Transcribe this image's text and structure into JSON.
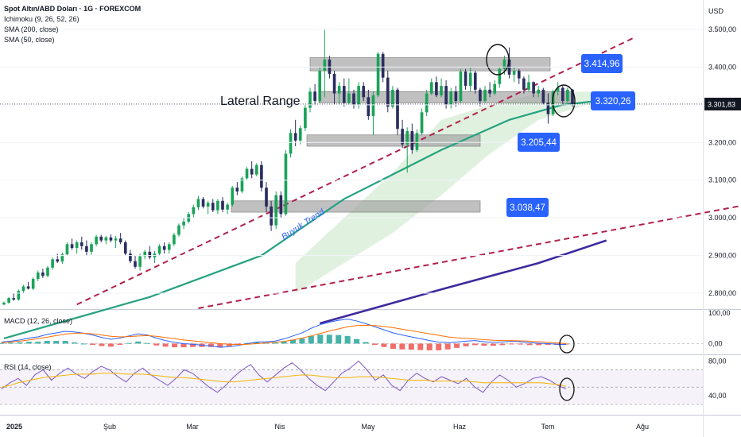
{
  "header": {
    "title": "Spot Altın/ABD Doları · 1G · FOREXCOM",
    "indicators": [
      "Ichimoku (9, 26, 52, 26)",
      "SMA (200, close)",
      "SMA (50, close)"
    ],
    "currency": "USD"
  },
  "chart_data": [
    {
      "type": "candlestick",
      "title": "Spot Altın/ABD Doları · 1G · FOREXCOM",
      "y_unit": "USD",
      "y_range": [
        2760,
        3540
      ],
      "y_ticks": [
        "3.500,00",
        "3.400,00",
        "3.300,00",
        "3.200,00",
        "3.100,00",
        "3.000,00",
        "2.900,00",
        "2.800,00"
      ],
      "y_tick_values": [
        3500,
        3400,
        3300,
        3200,
        3100,
        3000,
        2900,
        2800
      ],
      "x_ticks": [
        "2025",
        "Şub",
        "Mar",
        "Nis",
        "May",
        "Haz",
        "Tem",
        "Ağu"
      ],
      "last_price": {
        "label": "3.301,83",
        "value": 3301.83
      },
      "price_labels": [
        {
          "label": "3.414,96",
          "value": 3414.96
        },
        {
          "label": "3.320,26",
          "value": 3320.26
        },
        {
          "label": "3.205,44",
          "value": 3205.44
        },
        {
          "label": "3.038,47",
          "value": 3038.47
        }
      ],
      "zones": [
        {
          "from": 3390,
          "to": 3425
        },
        {
          "from": 3305,
          "to": 3335
        },
        {
          "from": 3190,
          "to": 3220
        },
        {
          "from": 3015,
          "to": 3045
        }
      ],
      "annotations": {
        "range_text": "Lateral Range",
        "trend_text": "Buyuk Trend"
      },
      "candles": [
        [
          2770,
          2778,
          2768,
          2775
        ],
        [
          2775,
          2790,
          2772,
          2787
        ],
        [
          2787,
          2800,
          2780,
          2783
        ],
        [
          2783,
          2810,
          2780,
          2806
        ],
        [
          2806,
          2822,
          2800,
          2818
        ],
        [
          2818,
          2830,
          2810,
          2812
        ],
        [
          2812,
          2842,
          2808,
          2838
        ],
        [
          2838,
          2860,
          2832,
          2855
        ],
        [
          2855,
          2865,
          2840,
          2846
        ],
        [
          2846,
          2872,
          2842,
          2868
        ],
        [
          2868,
          2895,
          2862,
          2890
        ],
        [
          2890,
          2905,
          2880,
          2884
        ],
        [
          2884,
          2908,
          2878,
          2903
        ],
        [
          2903,
          2935,
          2900,
          2930
        ],
        [
          2930,
          2945,
          2915,
          2920
        ],
        [
          2920,
          2940,
          2905,
          2935
        ],
        [
          2935,
          2950,
          2915,
          2925
        ],
        [
          2925,
          2940,
          2900,
          2910
        ],
        [
          2910,
          2935,
          2902,
          2930
        ],
        [
          2930,
          2955,
          2925,
          2950
        ],
        [
          2950,
          2955,
          2935,
          2940
        ],
        [
          2940,
          2952,
          2930,
          2948
        ],
        [
          2948,
          2956,
          2935,
          2940
        ],
        [
          2940,
          2952,
          2920,
          2945
        ],
        [
          2945,
          2960,
          2930,
          2935
        ],
        [
          2935,
          2940,
          2900,
          2905
        ],
        [
          2905,
          2915,
          2880,
          2885
        ],
        [
          2885,
          2900,
          2865,
          2870
        ],
        [
          2870,
          2905,
          2860,
          2898
        ],
        [
          2898,
          2915,
          2890,
          2910
        ],
        [
          2910,
          2925,
          2890,
          2895
        ],
        [
          2895,
          2912,
          2880,
          2905
        ],
        [
          2905,
          2930,
          2900,
          2925
        ],
        [
          2925,
          2935,
          2905,
          2915
        ],
        [
          2915,
          2935,
          2905,
          2930
        ],
        [
          2930,
          2960,
          2925,
          2955
        ],
        [
          2955,
          2985,
          2950,
          2980
        ],
        [
          2980,
          3000,
          2970,
          2990
        ],
        [
          2990,
          3015,
          2985,
          3010
        ],
        [
          3010,
          3035,
          3000,
          3028
        ],
        [
          3028,
          3058,
          3020,
          3050
        ],
        [
          3050,
          3055,
          3025,
          3030
        ],
        [
          3030,
          3045,
          3010,
          3040
        ],
        [
          3040,
          3050,
          3015,
          3020
        ],
        [
          3020,
          3050,
          3010,
          3045
        ],
        [
          3045,
          3055,
          3015,
          3022
        ],
        [
          3022,
          3040,
          3010,
          3035
        ],
        [
          3035,
          3085,
          3030,
          3080
        ],
        [
          3080,
          3095,
          3060,
          3070
        ],
        [
          3070,
          3110,
          3065,
          3105
        ],
        [
          3105,
          3135,
          3100,
          3130
        ],
        [
          3130,
          3150,
          3105,
          3115
        ],
        [
          3115,
          3145,
          3110,
          3140
        ],
        [
          3140,
          3150,
          3070,
          3080
        ],
        [
          3080,
          3095,
          3015,
          3030
        ],
        [
          3030,
          3045,
          2965,
          2980
        ],
        [
          2980,
          3070,
          2970,
          3060
        ],
        [
          3060,
          3070,
          3000,
          3010
        ],
        [
          3010,
          3180,
          3005,
          3170
        ],
        [
          3170,
          3235,
          3160,
          3225
        ],
        [
          3225,
          3260,
          3190,
          3205
        ],
        [
          3205,
          3245,
          3195,
          3238
        ],
        [
          3238,
          3300,
          3230,
          3292
        ],
        [
          3292,
          3345,
          3280,
          3335
        ],
        [
          3335,
          3355,
          3300,
          3310
        ],
        [
          3310,
          3400,
          3305,
          3390
        ],
        [
          3390,
          3500,
          3320,
          3420
        ],
        [
          3420,
          3430,
          3370,
          3382
        ],
        [
          3382,
          3390,
          3300,
          3330
        ],
        [
          3330,
          3360,
          3300,
          3350
        ],
        [
          3350,
          3370,
          3295,
          3305
        ],
        [
          3305,
          3370,
          3300,
          3330
        ],
        [
          3330,
          3340,
          3290,
          3300
        ],
        [
          3300,
          3360,
          3290,
          3350
        ],
        [
          3350,
          3360,
          3310,
          3320
        ],
        [
          3320,
          3340,
          3260,
          3270
        ],
        [
          3270,
          3335,
          3220,
          3325
        ],
        [
          3325,
          3440,
          3320,
          3435
        ],
        [
          3435,
          3440,
          3360,
          3372
        ],
        [
          3372,
          3390,
          3280,
          3295
        ],
        [
          3295,
          3350,
          3290,
          3340
        ],
        [
          3340,
          3345,
          3220,
          3236
        ],
        [
          3236,
          3260,
          3185,
          3195
        ],
        [
          3195,
          3240,
          3120,
          3230
        ],
        [
          3230,
          3250,
          3170,
          3180
        ],
        [
          3180,
          3235,
          3175,
          3225
        ],
        [
          3225,
          3290,
          3220,
          3280
        ],
        [
          3280,
          3340,
          3270,
          3330
        ],
        [
          3330,
          3370,
          3325,
          3360
        ],
        [
          3360,
          3375,
          3320,
          3325
        ],
        [
          3325,
          3370,
          3320,
          3350
        ],
        [
          3350,
          3365,
          3290,
          3300
        ],
        [
          3300,
          3345,
          3290,
          3335
        ],
        [
          3335,
          3350,
          3295,
          3310
        ],
        [
          3310,
          3395,
          3305,
          3388
        ],
        [
          3388,
          3395,
          3340,
          3350
        ],
        [
          3350,
          3400,
          3335,
          3385
        ],
        [
          3385,
          3390,
          3330,
          3340
        ],
        [
          3340,
          3345,
          3295,
          3310
        ],
        [
          3310,
          3350,
          3305,
          3340
        ],
        [
          3340,
          3360,
          3320,
          3330
        ],
        [
          3330,
          3365,
          3325,
          3355
        ],
        [
          3355,
          3400,
          3345,
          3395
        ],
        [
          3395,
          3430,
          3380,
          3420
        ],
        [
          3420,
          3452,
          3370,
          3380
        ],
        [
          3380,
          3400,
          3360,
          3390
        ],
        [
          3390,
          3395,
          3355,
          3370
        ],
        [
          3370,
          3375,
          3330,
          3340
        ],
        [
          3340,
          3380,
          3335,
          3360
        ],
        [
          3360,
          3362,
          3320,
          3330
        ],
        [
          3330,
          3350,
          3320,
          3340
        ],
        [
          3340,
          3345,
          3300,
          3305
        ],
        [
          3305,
          3330,
          3250,
          3275
        ],
        [
          3275,
          3340,
          3270,
          3335
        ],
        [
          3335,
          3360,
          3325,
          3345
        ],
        [
          3345,
          3350,
          3300,
          3310
        ],
        [
          3310,
          3345,
          3305,
          3340
        ],
        [
          3340,
          3342,
          3295,
          3301.83
        ]
      ],
      "sma50": [
        [
          0,
          2680
        ],
        [
          30,
          2790
        ],
        [
          53,
          2900
        ],
        [
          70,
          3050
        ],
        [
          90,
          3180
        ],
        [
          104,
          3260
        ],
        [
          115,
          3300
        ],
        [
          122,
          3310
        ]
      ],
      "sma200": [
        [
          65,
          2720
        ],
        [
          90,
          2810
        ],
        [
          110,
          2880
        ],
        [
          124,
          2940
        ]
      ],
      "trendlines": [
        {
          "from": [
            15,
            2770
          ],
          "to": [
            130,
            3480
          ]
        },
        {
          "from": [
            40,
            2760
          ],
          "to": [
            155,
            3040
          ]
        }
      ],
      "ichimoku_cloud": [
        [
          60,
          2800,
          2880
        ],
        [
          70,
          2880,
          3000
        ],
        [
          80,
          2960,
          3120
        ],
        [
          90,
          3060,
          3260
        ],
        [
          100,
          3170,
          3300
        ],
        [
          110,
          3260,
          3330
        ],
        [
          120,
          3300,
          3335
        ],
        [
          127,
          3300,
          3335
        ]
      ]
    },
    {
      "type": "macd",
      "title": "MACD (12, 26, close)",
      "y_ticks": [
        "100,00",
        "0,00"
      ],
      "y_tick_values": [
        100,
        0
      ],
      "y_range": [
        -30,
        105
      ],
      "macd": [
        5,
        8,
        12,
        18,
        22,
        30,
        35,
        40,
        38,
        34,
        28,
        20,
        14,
        18,
        25,
        32,
        28,
        18,
        10,
        4,
        0,
        -2,
        -5,
        -8,
        -12,
        -10,
        -6,
        0,
        5,
        6,
        8,
        15,
        25,
        35,
        50,
        62,
        70,
        76,
        80,
        74,
        65,
        55,
        45,
        35,
        28,
        22,
        16,
        10,
        5,
        3,
        5,
        8,
        10,
        6,
        4,
        5,
        8,
        6,
        3,
        1,
        0,
        -2,
        -3
      ],
      "signal": [
        3,
        5,
        8,
        12,
        16,
        21,
        26,
        31,
        34,
        34,
        32,
        28,
        24,
        22,
        23,
        25,
        26,
        24,
        20,
        16,
        12,
        9,
        6,
        3,
        0,
        -2,
        -3,
        -2,
        0,
        2,
        4,
        7,
        12,
        18,
        25,
        33,
        41,
        48,
        55,
        59,
        60,
        59,
        56,
        52,
        47,
        42,
        37,
        32,
        27,
        22,
        19,
        17,
        15,
        13,
        11,
        10,
        10,
        9,
        8,
        6,
        4,
        2,
        0
      ],
      "histogram": [
        2,
        3,
        4,
        6,
        6,
        9,
        9,
        9,
        4,
        0,
        -4,
        -8,
        -10,
        -4,
        2,
        7,
        2,
        -6,
        -10,
        -12,
        -12,
        -11,
        -11,
        -11,
        -12,
        -8,
        -3,
        2,
        5,
        4,
        4,
        8,
        13,
        17,
        25,
        29,
        29,
        28,
        25,
        15,
        5,
        -4,
        -11,
        -17,
        -19,
        -20,
        -21,
        -22,
        -22,
        -19,
        -14,
        -9,
        -5,
        -7,
        -7,
        -5,
        -2,
        -3,
        -5,
        -5,
        -4,
        -4,
        -3
      ]
    },
    {
      "type": "rsi",
      "title": "RSI (14, close)",
      "y_ticks": [
        "80,00",
        "40,00"
      ],
      "y_tick_values": [
        80,
        40
      ],
      "y_range": [
        20,
        85
      ],
      "band": [
        30,
        70
      ],
      "rsi": [
        48,
        55,
        60,
        52,
        64,
        70,
        58,
        66,
        72,
        65,
        60,
        68,
        74,
        70,
        62,
        56,
        66,
        72,
        64,
        58,
        52,
        60,
        70,
        66,
        58,
        50,
        44,
        52,
        62,
        70,
        76,
        64,
        56,
        64,
        72,
        78,
        70,
        60,
        52,
        46,
        56,
        66,
        72,
        80,
        70,
        58,
        64,
        52,
        46,
        58,
        66,
        60,
        56,
        62,
        58,
        54,
        60,
        50,
        44,
        56,
        64,
        58,
        50,
        54,
        60,
        62,
        58,
        52,
        48
      ],
      "rsi_ma": [
        50,
        52,
        55,
        57,
        59,
        61,
        62,
        63,
        64,
        65,
        65,
        65,
        66,
        66,
        66,
        65,
        65,
        65,
        64,
        63,
        62,
        61,
        61,
        60,
        59,
        58,
        57,
        56,
        56,
        57,
        58,
        59,
        60,
        61,
        62,
        63,
        64,
        64,
        63,
        62,
        61,
        61,
        61,
        62,
        62,
        62,
        61,
        60,
        59,
        58,
        58,
        58,
        57,
        57,
        57,
        57,
        57,
        56,
        55,
        55,
        55,
        55,
        55,
        55,
        55,
        55,
        54,
        53,
        51
      ]
    }
  ]
}
